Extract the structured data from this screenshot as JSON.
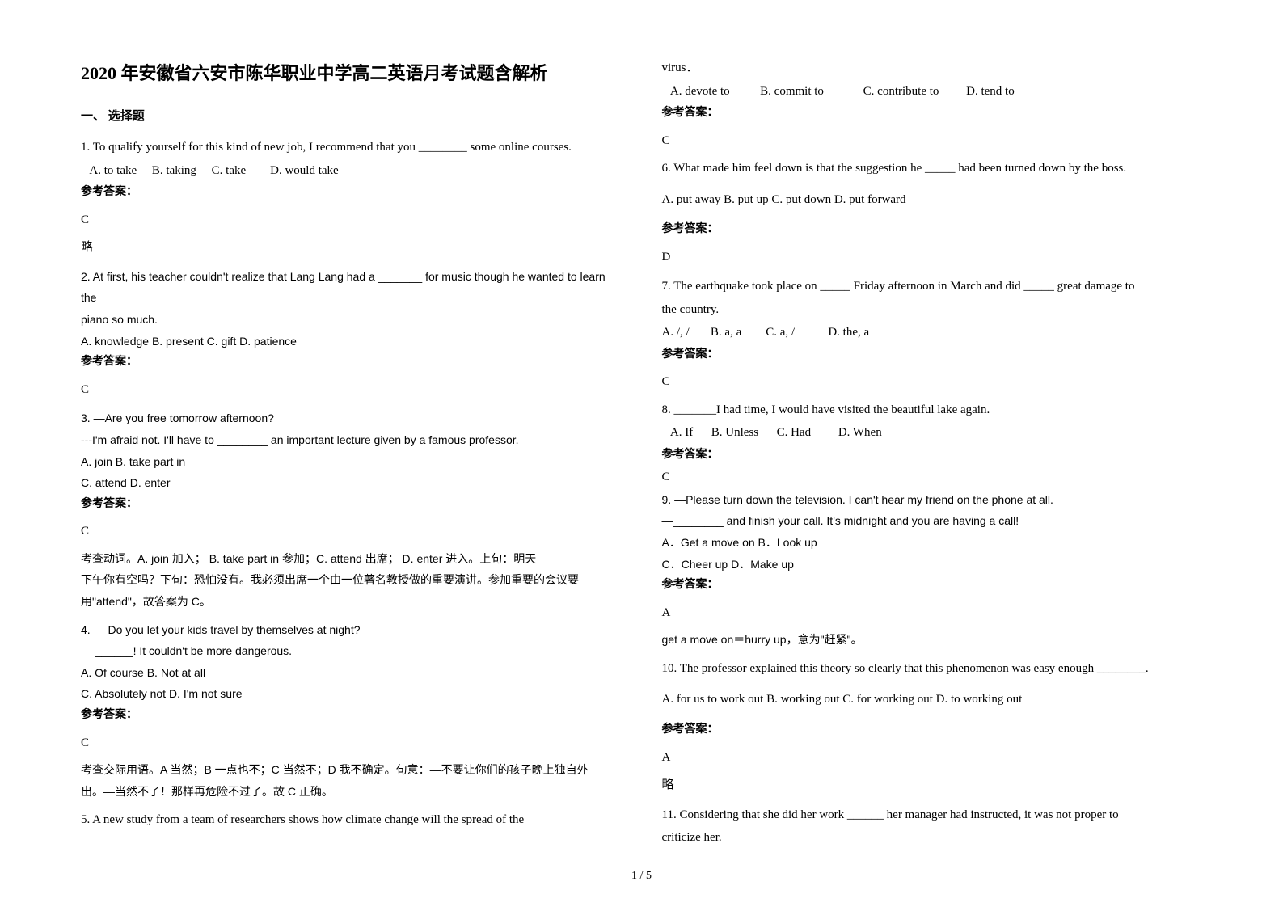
{
  "title": "2020 年安徽省六安市陈华职业中学高二英语月考试题含解析",
  "section1": "一、 选择题",
  "q1": {
    "stem": "1. To qualify yourself for this kind of new job, I recommend that you ________ some online courses.",
    "opts": "   A. to take     B. taking     C. take        D. would take",
    "ansLabel": "参考答案：",
    "ans": "C",
    "note": "略"
  },
  "q2": {
    "stem1": "2. At first, his teacher couldn't realize that Lang Lang had a _______ for music though he wanted to learn the",
    "stem2": "piano so much.",
    "opts": "A. knowledge   B. present   C. gift   D. patience",
    "ansLabel": "参考答案：",
    "ans": "C"
  },
  "q3": {
    "stem1": "3. —Are you free tomorrow afternoon?",
    "stem2": "---I'm afraid not. I'll have to ________ an important lecture given by a famous professor.",
    "opts1": "A. join   B. take part in",
    "opts2": "C. attend   D. enter",
    "ansLabel": "参考答案：",
    "ans": "C",
    "expl1": "考查动词。A. join 加入；        B. take part in 参加；C. attend 出席；       D. enter 进入。上句：明天",
    "expl2": "下午你有空吗？下句：恐怕没有。我必须出席一个由一位著名教授做的重要演讲。参加重要的会议要",
    "expl3": "用\"attend\"，故答案为 C。"
  },
  "q4": {
    "stem1": "4. — Do you let your kids travel by themselves at night?",
    "stem2": "— ______! It couldn't be more dangerous.",
    "opts1": "A. Of course   B. Not at all",
    "opts2": "C. Absolutely not   D. I'm not sure",
    "ansLabel": "参考答案：",
    "ans": "C",
    "expl1": "考查交际用语。A 当然；B 一点也不；C 当然不；D 我不确定。句意：—不要让你们的孩子晚上独自外",
    "expl2": "出。—当然不了！那样再危险不过了。故 C 正确。"
  },
  "q5": {
    "stem": "5. A new study from a team of researchers shows how climate change will     the spread of the",
    "stem_cont": "virus．",
    "opts": "   A. devote to          B. commit to             C. contribute to         D. tend to",
    "ansLabel": "参考答案：",
    "ans": "C"
  },
  "q6": {
    "stem": "6. What made him feel down is that the suggestion he _____ had been turned down by the boss.",
    "opts": "A. put away    B. put up    C. put down    D. put forward",
    "ansLabel": "参考答案：",
    "ans": "D"
  },
  "q7": {
    "stem1": "7. The earthquake took place on _____ Friday afternoon in March and did _____ great damage to",
    "stem2": "the country.",
    "opts": "A. /, /       B. a, a        C. a, /           D. the, a",
    "ansLabel": "参考答案：",
    "ans": "C"
  },
  "q8": {
    "stem": "8. _______I had time, I would have visited the beautiful lake again.",
    "opts": "   A. If      B. Unless      C. Had         D. When",
    "ansLabel": "参考答案：",
    "ans": "C"
  },
  "q9": {
    "stem1": "9. —Please turn down the television. I can't hear my friend on the phone at all.",
    "stem2": "—________ and finish your call. It's midnight and you are having a call!",
    "opts1": "A．Get a move on       B．Look up",
    "opts2": "C．Cheer up      D．Make up",
    "ansLabel": "参考答案：",
    "ans": "A",
    "expl": "get a move on＝hurry up，意为\"赶紧\"。"
  },
  "q10": {
    "stem": "10. The professor explained this theory so clearly that this phenomenon was easy enough ________.",
    "opts": "A. for us to work out   B. working out    C. for working out  D. to working out",
    "ansLabel": "参考答案：",
    "ans": "A",
    "note": "略"
  },
  "q11": {
    "stem1": "11. Considering that she did her work ______ her manager had instructed, it was not proper to",
    "stem2": "criticize her."
  },
  "pageNum": "1 / 5"
}
